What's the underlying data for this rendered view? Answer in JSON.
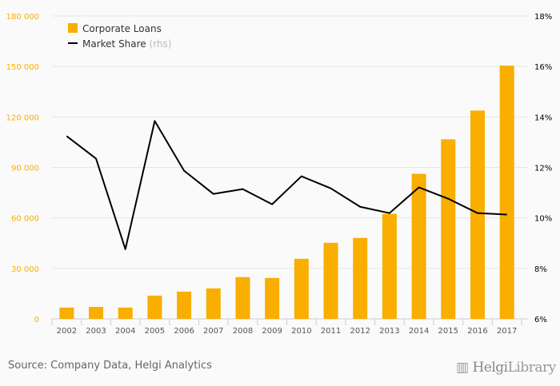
{
  "chart_data": {
    "type": "bar+line",
    "categories": [
      "2002",
      "2003",
      "2004",
      "2005",
      "2006",
      "2007",
      "2008",
      "2009",
      "2010",
      "2011",
      "2012",
      "2013",
      "2014",
      "2015",
      "2016",
      "2017"
    ],
    "series": [
      {
        "name": "Corporate Loans",
        "type": "bar",
        "axis": "left",
        "color": "#f9ae00",
        "values": [
          6700,
          7100,
          6700,
          13800,
          16200,
          18100,
          24800,
          24300,
          35700,
          45200,
          48100,
          62400,
          86200,
          106700,
          123800,
          150500
        ]
      },
      {
        "name": "Market Share",
        "suffix": "(rhs)",
        "type": "line",
        "axis": "right",
        "color": "#000000",
        "values": [
          13.24,
          12.35,
          8.76,
          13.84,
          11.87,
          10.95,
          11.14,
          10.54,
          11.65,
          11.17,
          10.44,
          10.19,
          11.21,
          10.76,
          10.19,
          10.13
        ]
      }
    ],
    "left_axis": {
      "ylim": [
        0,
        180000
      ],
      "ticks": [
        "0",
        "30 000",
        "60 000",
        "90 000",
        "120 000",
        "150 000",
        "180 000"
      ],
      "values": [
        0,
        30000,
        60000,
        90000,
        120000,
        150000,
        180000
      ],
      "color": "#f9ae00"
    },
    "right_axis": {
      "ylim": [
        6,
        18
      ],
      "ticks": [
        "6%",
        "8%",
        "10%",
        "12%",
        "14%",
        "16%",
        "18%"
      ],
      "values": [
        6,
        8,
        10,
        12,
        14,
        16,
        18
      ]
    },
    "legend": "top-left",
    "grid": true
  },
  "footer": {
    "source": "Source: Company Data, Helgi Analytics",
    "logo": "HelgiLibrary"
  }
}
